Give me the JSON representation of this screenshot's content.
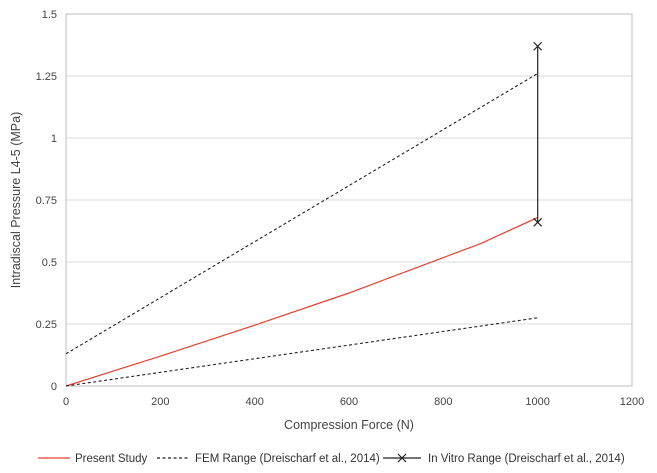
{
  "chart_data": {
    "type": "line",
    "title": "",
    "xlabel": "Compression Force (N)",
    "ylabel": "Intradiscal Pressure L4-5 (MPa)",
    "xlim": [
      0,
      1200
    ],
    "ylim": [
      0,
      1.5
    ],
    "x_ticks": [
      0,
      200,
      400,
      600,
      800,
      1000,
      1200
    ],
    "y_ticks": [
      0,
      0.25,
      0.5,
      0.75,
      1,
      1.25,
      1.5
    ],
    "x_tick_labels": [
      "0",
      "200",
      "400",
      "600",
      "800",
      "1000",
      "1200"
    ],
    "y_tick_labels": [
      "0",
      "0.25",
      "0.5",
      "0.75",
      "1",
      "1.25",
      "1.5"
    ],
    "grid": "horizontal",
    "legend_position": "bottom",
    "series": [
      {
        "name": "Present Study",
        "color": "#e8412e",
        "style": "solid",
        "points": [
          [
            0,
            0
          ],
          [
            200,
            0.12
          ],
          [
            400,
            0.245
          ],
          [
            600,
            0.375
          ],
          [
            880,
            0.575
          ],
          [
            1000,
            0.68
          ]
        ]
      },
      {
        "name": "FEM Range (Dreischarf et al., 2014)",
        "color": "#222222",
        "style": "dashed",
        "lines": [
          [
            [
              0,
              0.13
            ],
            [
              1000,
              1.26
            ]
          ],
          [
            [
              0,
              0
            ],
            [
              1000,
              0.275
            ]
          ]
        ]
      },
      {
        "name": "In Vitro Range (Dreischarf et al., 2014)",
        "color": "#222222",
        "style": "solid",
        "marker": "x",
        "points": [
          [
            1000,
            1.37
          ],
          [
            1000,
            0.66
          ]
        ]
      }
    ]
  }
}
